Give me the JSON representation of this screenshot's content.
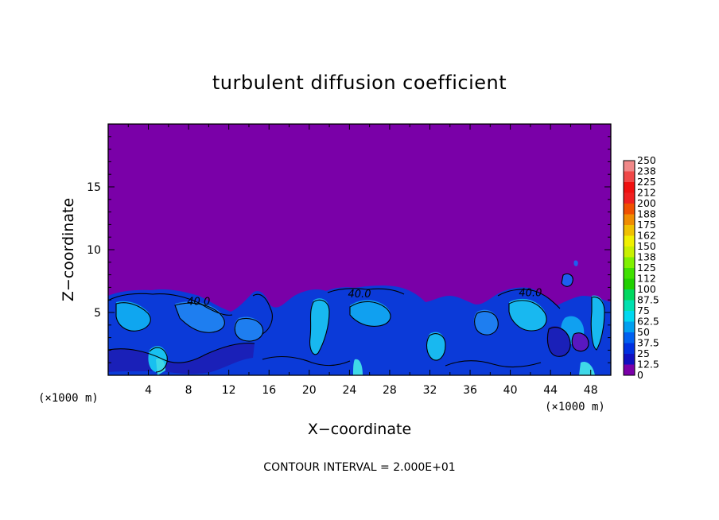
{
  "chart_data": {
    "type": "heatmap",
    "title": "turbulent diffusion coefficient",
    "xlabel": "X−coordinate",
    "ylabel": "Z−coordinate",
    "x_unit_left": "(×1000 m)",
    "x_unit_right": "(×1000 m)",
    "xlim": [
      0,
      50
    ],
    "ylim": [
      0,
      20
    ],
    "x_ticks": [
      4,
      8,
      12,
      16,
      20,
      24,
      28,
      32,
      36,
      40,
      44,
      48
    ],
    "y_ticks": [
      5,
      10,
      15
    ],
    "contour_interval_text": "CONTOUR INTERVAL = 2.000E+01",
    "contour_labels": [
      {
        "text": "40.0",
        "x": 9,
        "z": 5.6
      },
      {
        "text": "40.0",
        "x": 25,
        "z": 6.2
      },
      {
        "text": "40.0",
        "x": 42,
        "z": 6.3
      }
    ],
    "colorbar": {
      "levels": [
        "250",
        "238",
        "225",
        "212",
        "200",
        "188",
        "175",
        "162",
        "150",
        "138",
        "125",
        "112",
        "100",
        "87.5",
        "75",
        "62.5",
        "50",
        "37.5",
        "25",
        "12.5",
        "0"
      ],
      "colors": [
        "#f08888",
        "#f04848",
        "#f01010",
        "#f02020",
        "#f05000",
        "#f08c00",
        "#f0c000",
        "#f0f000",
        "#c8f000",
        "#80f000",
        "#40e000",
        "#20d000",
        "#00d860",
        "#00e0b0",
        "#00d8f0",
        "#00a0f0",
        "#0060f0",
        "#0030e0",
        "#1010c0",
        "#2020a0",
        "#7a00a8"
      ]
    },
    "fill_background_color": "#7a00a8"
  }
}
